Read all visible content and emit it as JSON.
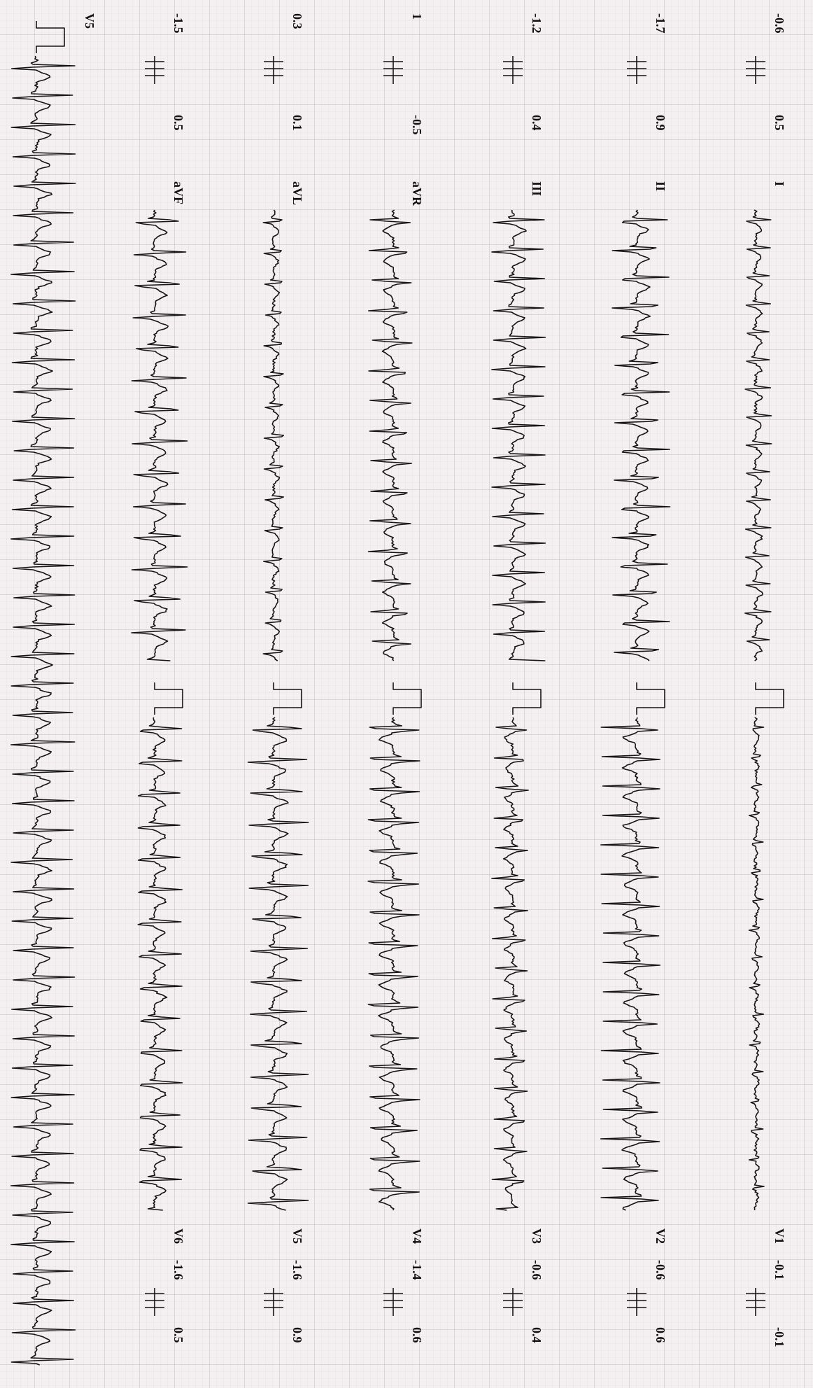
{
  "rows": [
    {
      "left_pre": [
        "-0.6",
        "0.5"
      ],
      "left_lead": "I",
      "right_lead": "V1",
      "right_post": [
        "-0.1",
        "-0.1"
      ]
    },
    {
      "left_pre": [
        "-1.7",
        "0.9"
      ],
      "left_lead": "II",
      "right_lead": "V2",
      "right_post": [
        "-0.6",
        "0.6"
      ]
    },
    {
      "left_pre": [
        "-1.2",
        "0.4"
      ],
      "left_lead": "III",
      "right_lead": "V3",
      "right_post": [
        "-0.6",
        "0.4"
      ]
    },
    {
      "left_pre": [
        "1",
        "-0.5"
      ],
      "left_lead": "aVR",
      "right_lead": "V4",
      "right_post": [
        "-1.4",
        "0.6"
      ]
    },
    {
      "left_pre": [
        "0.3",
        "0.1"
      ],
      "left_lead": "aVL",
      "right_lead": "V5",
      "right_post": [
        "-1.6",
        "0.9"
      ]
    },
    {
      "left_pre": [
        "-1.5",
        "0.5"
      ],
      "left_lead": "aVF",
      "right_lead": "V6",
      "right_post": [
        "-1.6",
        "0.5"
      ]
    }
  ],
  "rhythm_lead": "V5"
}
